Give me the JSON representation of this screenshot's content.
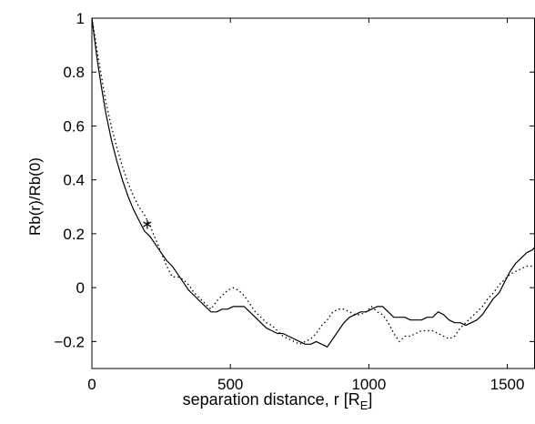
{
  "chart_data": {
    "type": "line",
    "title": "",
    "xlabel": "separation distance, r [R",
    "xlabel_subscript": "E",
    "xlabel_suffix": "]",
    "ylabel": "Rb(r)/Rb(0)",
    "xlim": [
      0,
      1600
    ],
    "ylim": [
      -0.3,
      1.0
    ],
    "x_ticks": [
      0,
      500,
      1000,
      1500
    ],
    "x_tick_labels": [
      "0",
      "500",
      "1000",
      "1500"
    ],
    "y_ticks": [
      -0.2,
      0,
      0.2,
      0.4,
      0.6,
      0.8,
      1.0
    ],
    "y_tick_labels": [
      "−0.2",
      "0",
      "0.2",
      "0.4",
      "0.6",
      "0.8",
      "1"
    ],
    "grid": false,
    "series": [
      {
        "style": "solid",
        "x": [
          0,
          10,
          20,
          35,
          50,
          70,
          90,
          110,
          130,
          150,
          170,
          190,
          210,
          230,
          250,
          270,
          290,
          310,
          330,
          350,
          370,
          390,
          410,
          430,
          450,
          470,
          490,
          510,
          530,
          550,
          570,
          590,
          610,
          630,
          650,
          670,
          690,
          710,
          730,
          750,
          770,
          790,
          810,
          830,
          850,
          870,
          890,
          910,
          930,
          950,
          970,
          990,
          1010,
          1030,
          1050,
          1070,
          1090,
          1110,
          1130,
          1150,
          1170,
          1190,
          1210,
          1230,
          1250,
          1270,
          1290,
          1310,
          1330,
          1350,
          1370,
          1390,
          1410,
          1430,
          1450,
          1470,
          1490,
          1510,
          1530,
          1550,
          1570,
          1590,
          1600
        ],
        "y": [
          1.0,
          0.92,
          0.84,
          0.74,
          0.65,
          0.55,
          0.47,
          0.4,
          0.34,
          0.29,
          0.25,
          0.21,
          0.19,
          0.16,
          0.13,
          0.1,
          0.08,
          0.05,
          0.02,
          -0.01,
          -0.03,
          -0.05,
          -0.07,
          -0.09,
          -0.09,
          -0.08,
          -0.08,
          -0.07,
          -0.07,
          -0.07,
          -0.09,
          -0.11,
          -0.13,
          -0.15,
          -0.16,
          -0.17,
          -0.17,
          -0.18,
          -0.19,
          -0.2,
          -0.21,
          -0.21,
          -0.2,
          -0.21,
          -0.22,
          -0.19,
          -0.16,
          -0.13,
          -0.11,
          -0.1,
          -0.09,
          -0.09,
          -0.08,
          -0.07,
          -0.07,
          -0.09,
          -0.11,
          -0.11,
          -0.11,
          -0.12,
          -0.12,
          -0.12,
          -0.11,
          -0.11,
          -0.09,
          -0.1,
          -0.12,
          -0.13,
          -0.13,
          -0.14,
          -0.13,
          -0.12,
          -0.1,
          -0.07,
          -0.04,
          -0.02,
          0.02,
          0.06,
          0.09,
          0.11,
          0.13,
          0.14,
          0.15
        ]
      },
      {
        "style": "dotted",
        "x": [
          0,
          10,
          20,
          35,
          50,
          70,
          90,
          110,
          130,
          150,
          170,
          190,
          210,
          230,
          250,
          270,
          290,
          310,
          330,
          350,
          370,
          390,
          410,
          430,
          450,
          470,
          490,
          510,
          530,
          550,
          570,
          590,
          610,
          630,
          650,
          670,
          690,
          710,
          730,
          750,
          770,
          790,
          810,
          830,
          850,
          870,
          890,
          910,
          930,
          950,
          970,
          990,
          1010,
          1030,
          1050,
          1070,
          1090,
          1110,
          1130,
          1150,
          1170,
          1190,
          1210,
          1230,
          1250,
          1270,
          1290,
          1310,
          1330,
          1350,
          1370,
          1390,
          1410,
          1430,
          1450,
          1470,
          1490,
          1510,
          1530,
          1550,
          1570,
          1590,
          1600
        ],
        "y": [
          1.0,
          0.94,
          0.87,
          0.78,
          0.69,
          0.6,
          0.52,
          0.45,
          0.39,
          0.34,
          0.3,
          0.27,
          0.23,
          0.18,
          0.13,
          0.08,
          0.04,
          0.04,
          0.03,
          0.01,
          -0.02,
          -0.04,
          -0.06,
          -0.08,
          -0.05,
          -0.03,
          -0.01,
          0.0,
          -0.01,
          -0.03,
          -0.06,
          -0.09,
          -0.11,
          -0.13,
          -0.14,
          -0.16,
          -0.18,
          -0.19,
          -0.2,
          -0.21,
          -0.2,
          -0.19,
          -0.17,
          -0.14,
          -0.12,
          -0.09,
          -0.08,
          -0.08,
          -0.09,
          -0.1,
          -0.1,
          -0.09,
          -0.07,
          -0.09,
          -0.1,
          -0.13,
          -0.17,
          -0.2,
          -0.18,
          -0.18,
          -0.17,
          -0.16,
          -0.16,
          -0.16,
          -0.17,
          -0.18,
          -0.19,
          -0.18,
          -0.15,
          -0.13,
          -0.11,
          -0.09,
          -0.07,
          -0.04,
          -0.02,
          0.01,
          0.03,
          0.05,
          0.06,
          0.07,
          0.08,
          0.08,
          0.08
        ]
      }
    ],
    "annotations": [
      {
        "marker": "asterisk",
        "x": 200,
        "y": 0.235
      }
    ]
  }
}
